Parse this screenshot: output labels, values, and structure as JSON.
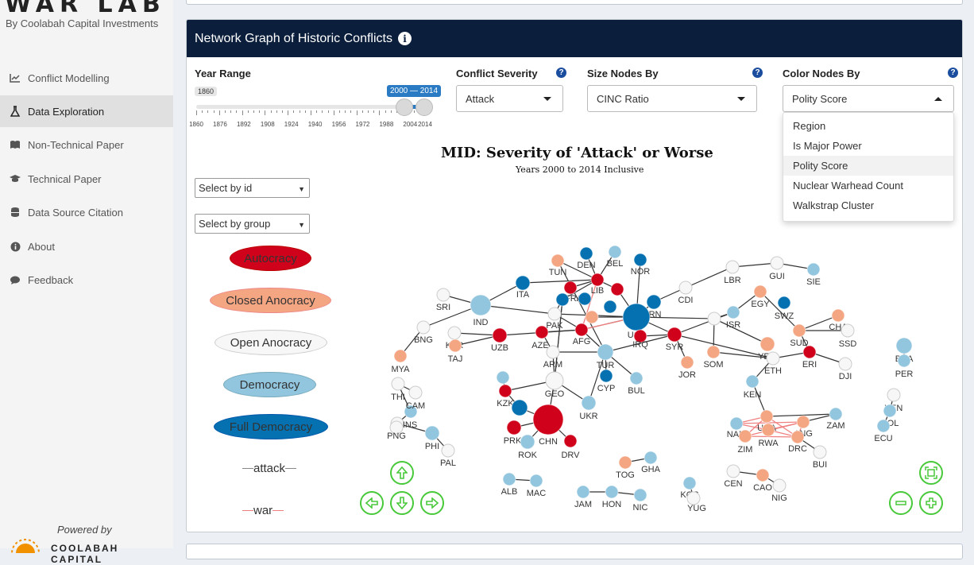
{
  "app": {
    "logo_text": "WAR LAB",
    "logo_sub": "By Coolabah Capital Investments",
    "powered_by": "Powered by",
    "brand_footer": "COOLABAH CAPITAL"
  },
  "sidebar": {
    "items": [
      {
        "label": "Conflict Modelling",
        "icon": "line-chart-icon"
      },
      {
        "label": "Data Exploration",
        "icon": "flask-icon",
        "active": true
      },
      {
        "label": "Non-Technical Paper",
        "icon": "book-icon"
      },
      {
        "label": "Technical Paper",
        "icon": "graduation-cap-icon"
      },
      {
        "label": "Data Source Citation",
        "icon": "database-icon"
      },
      {
        "label": "About",
        "icon": "info-circle-icon"
      },
      {
        "label": "Feedback",
        "icon": "comment-icon"
      }
    ]
  },
  "panel": {
    "title": "Network Graph of Historic Conflicts",
    "year_range": {
      "label": "Year Range",
      "min_label": "1860",
      "range_label": "2000 — 2014",
      "ticks": [
        "1860",
        "1876",
        "1892",
        "1908",
        "1924",
        "1940",
        "1956",
        "1972",
        "1988",
        "2004",
        "2014"
      ]
    },
    "severity": {
      "label": "Conflict Severity",
      "value": "Attack"
    },
    "size_by": {
      "label": "Size Nodes By",
      "value": "CINC Ratio"
    },
    "color_by": {
      "label": "Color Nodes By",
      "value": "Polity Score",
      "options": [
        "Region",
        "Is Major Power",
        "Polity Score",
        "Nuclear Warhead Count",
        "Walkstrap Cluster"
      ]
    },
    "select_id": "Select by id",
    "select_group": "Select by group"
  },
  "graph": {
    "title": "MID: Severity of 'Attack' or Worse",
    "subtitle": "Years 2000 to 2014 Inclusive",
    "colors": {
      "autocracy": "#d0021b",
      "closed": "#f4a582",
      "open": "#f7f7f7",
      "democracy": "#92c5de",
      "full": "#0571b0"
    },
    "legend": [
      {
        "label": "Autocracy",
        "color": "#d0021b"
      },
      {
        "label": "Closed Anocracy",
        "color": "#f4a582"
      },
      {
        "label": "Open Anocracy",
        "color": "#f7f7f7"
      },
      {
        "label": "Democracy",
        "color": "#92c5de"
      },
      {
        "label": "Full Democracy",
        "color": "#0571b0"
      }
    ],
    "edge_legend": [
      {
        "label": "attack",
        "color": "#888888"
      },
      {
        "label": "war",
        "color": "#f08080"
      }
    ]
  }
}
